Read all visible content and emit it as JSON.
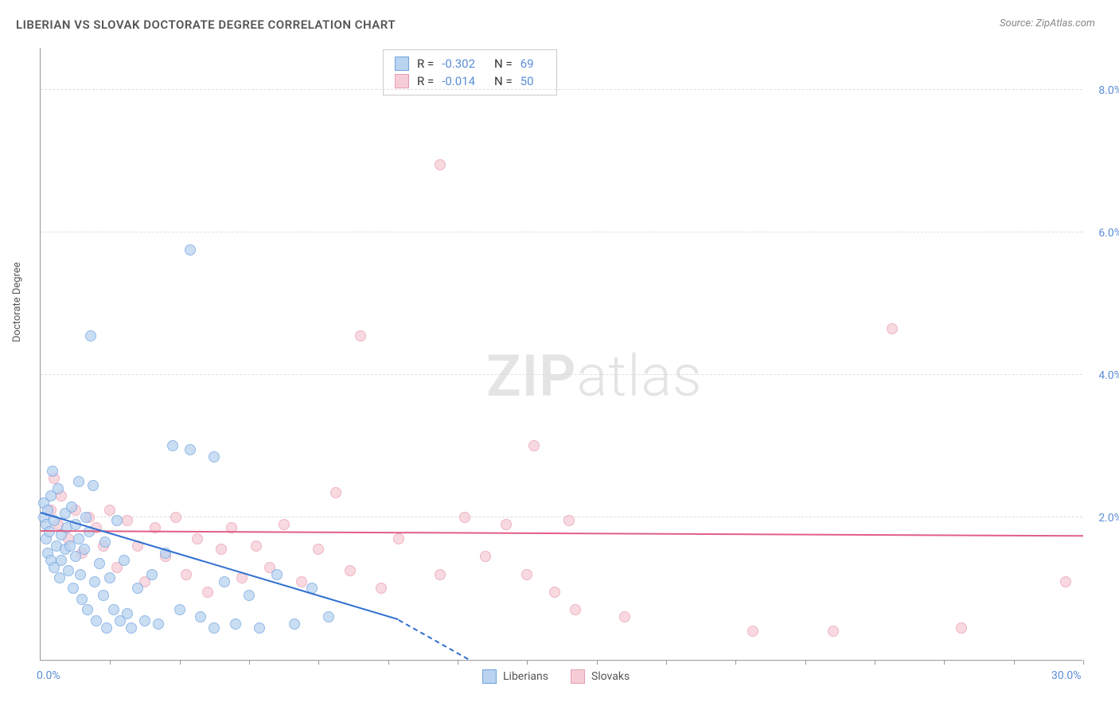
{
  "title": "LIBERIAN VS SLOVAK DOCTORATE DEGREE CORRELATION CHART",
  "source": "Source: ZipAtlas.com",
  "ylabel": "Doctorate Degree",
  "watermark_bold": "ZIP",
  "watermark_light": "atlas",
  "xlim": [
    0,
    30
  ],
  "ylim": [
    0,
    8.6
  ],
  "xticks": [
    0.0,
    30.0
  ],
  "yticks": [
    2.0,
    4.0,
    6.0,
    8.0
  ],
  "xtick_marks": [
    2,
    4,
    6,
    8,
    10,
    12,
    14,
    16,
    18,
    20,
    22,
    24,
    26,
    28,
    30
  ],
  "xtick_fmt": "%",
  "ytick_fmt": "%",
  "colors": {
    "blue_fill": "#b9d3f0",
    "blue_stroke": "#6ea2e0",
    "blue_line": "#2f6fd0",
    "pink_fill": "#f6cdd6",
    "pink_stroke": "#e79cb0",
    "pink_line": "#e15f86",
    "axis_label": "#5b8dd6",
    "grid": "#dddddd"
  },
  "marker_radius": 7,
  "marker_opacity": 0.75,
  "stats": [
    {
      "series": "blue",
      "R": "-0.302",
      "N": "69"
    },
    {
      "series": "pink",
      "R": "-0.014",
      "N": "50"
    }
  ],
  "legend": [
    {
      "series": "blue",
      "label": "Liberians"
    },
    {
      "series": "pink",
      "label": "Slovaks"
    }
  ],
  "trend_lines": {
    "blue": {
      "x1": 0,
      "y1": 2.05,
      "x2": 10.3,
      "y2": 0.55,
      "dash_to_x": 12.3,
      "dash_to_y": 0.0
    },
    "pink": {
      "x1": 0,
      "y1": 1.8,
      "x2": 30,
      "y2": 1.73
    }
  },
  "series": {
    "blue": [
      [
        0.1,
        2.0
      ],
      [
        0.1,
        2.2
      ],
      [
        0.15,
        1.9
      ],
      [
        0.15,
        1.7
      ],
      [
        0.2,
        2.1
      ],
      [
        0.2,
        1.5
      ],
      [
        0.25,
        1.8
      ],
      [
        0.3,
        2.3
      ],
      [
        0.3,
        1.4
      ],
      [
        0.35,
        2.65
      ],
      [
        0.4,
        1.95
      ],
      [
        0.4,
        1.3
      ],
      [
        0.45,
        1.6
      ],
      [
        0.5,
        2.4
      ],
      [
        0.55,
        1.15
      ],
      [
        0.6,
        1.75
      ],
      [
        0.6,
        1.4
      ],
      [
        0.7,
        2.05
      ],
      [
        0.7,
        1.55
      ],
      [
        0.75,
        1.85
      ],
      [
        0.8,
        1.25
      ],
      [
        0.85,
        1.6
      ],
      [
        0.9,
        2.15
      ],
      [
        0.95,
        1.0
      ],
      [
        1.0,
        1.45
      ],
      [
        1.0,
        1.9
      ],
      [
        1.1,
        1.7
      ],
      [
        1.1,
        2.5
      ],
      [
        1.15,
        1.2
      ],
      [
        1.2,
        0.85
      ],
      [
        1.25,
        1.55
      ],
      [
        1.3,
        2.0
      ],
      [
        1.35,
        0.7
      ],
      [
        1.4,
        1.8
      ],
      [
        1.5,
        2.45
      ],
      [
        1.45,
        4.55
      ],
      [
        1.55,
        1.1
      ],
      [
        1.6,
        0.55
      ],
      [
        1.7,
        1.35
      ],
      [
        1.8,
        0.9
      ],
      [
        1.85,
        1.65
      ],
      [
        1.9,
        0.45
      ],
      [
        2.0,
        1.15
      ],
      [
        2.1,
        0.7
      ],
      [
        2.2,
        1.95
      ],
      [
        2.3,
        0.55
      ],
      [
        2.4,
        1.4
      ],
      [
        2.5,
        0.65
      ],
      [
        2.6,
        0.45
      ],
      [
        2.8,
        1.0
      ],
      [
        3.0,
        0.55
      ],
      [
        3.2,
        1.2
      ],
      [
        3.4,
        0.5
      ],
      [
        3.6,
        1.5
      ],
      [
        3.8,
        3.0
      ],
      [
        4.0,
        0.7
      ],
      [
        4.3,
        2.95
      ],
      [
        4.3,
        5.75
      ],
      [
        4.6,
        0.6
      ],
      [
        5.0,
        0.45
      ],
      [
        5.0,
        2.85
      ],
      [
        5.3,
        1.1
      ],
      [
        5.6,
        0.5
      ],
      [
        6.0,
        0.9
      ],
      [
        6.3,
        0.45
      ],
      [
        6.8,
        1.2
      ],
      [
        7.3,
        0.5
      ],
      [
        7.8,
        1.0
      ],
      [
        8.3,
        0.6
      ]
    ],
    "pink": [
      [
        0.3,
        2.1
      ],
      [
        0.4,
        2.55
      ],
      [
        0.5,
        1.9
      ],
      [
        0.6,
        2.3
      ],
      [
        0.8,
        1.7
      ],
      [
        1.0,
        2.1
      ],
      [
        1.2,
        1.5
      ],
      [
        1.4,
        2.0
      ],
      [
        1.6,
        1.85
      ],
      [
        1.8,
        1.6
      ],
      [
        2.0,
        2.1
      ],
      [
        2.2,
        1.3
      ],
      [
        2.5,
        1.95
      ],
      [
        2.8,
        1.6
      ],
      [
        3.0,
        1.1
      ],
      [
        3.3,
        1.85
      ],
      [
        3.6,
        1.45
      ],
      [
        3.9,
        2.0
      ],
      [
        4.2,
        1.2
      ],
      [
        4.5,
        1.7
      ],
      [
        4.8,
        0.95
      ],
      [
        5.2,
        1.55
      ],
      [
        5.5,
        1.85
      ],
      [
        5.8,
        1.15
      ],
      [
        6.2,
        1.6
      ],
      [
        6.6,
        1.3
      ],
      [
        7.0,
        1.9
      ],
      [
        7.5,
        1.1
      ],
      [
        8.0,
        1.55
      ],
      [
        8.5,
        2.35
      ],
      [
        8.9,
        1.25
      ],
      [
        9.2,
        4.55
      ],
      [
        9.8,
        1.0
      ],
      [
        10.3,
        1.7
      ],
      [
        11.5,
        1.2
      ],
      [
        11.5,
        6.95
      ],
      [
        12.2,
        2.0
      ],
      [
        12.8,
        1.45
      ],
      [
        13.4,
        1.9
      ],
      [
        14.0,
        1.2
      ],
      [
        14.2,
        3.0
      ],
      [
        14.8,
        0.95
      ],
      [
        15.2,
        1.95
      ],
      [
        15.4,
        0.7
      ],
      [
        16.8,
        0.6
      ],
      [
        20.5,
        0.4
      ],
      [
        22.8,
        0.4
      ],
      [
        24.5,
        4.65
      ],
      [
        26.5,
        0.45
      ],
      [
        29.5,
        1.1
      ]
    ]
  }
}
